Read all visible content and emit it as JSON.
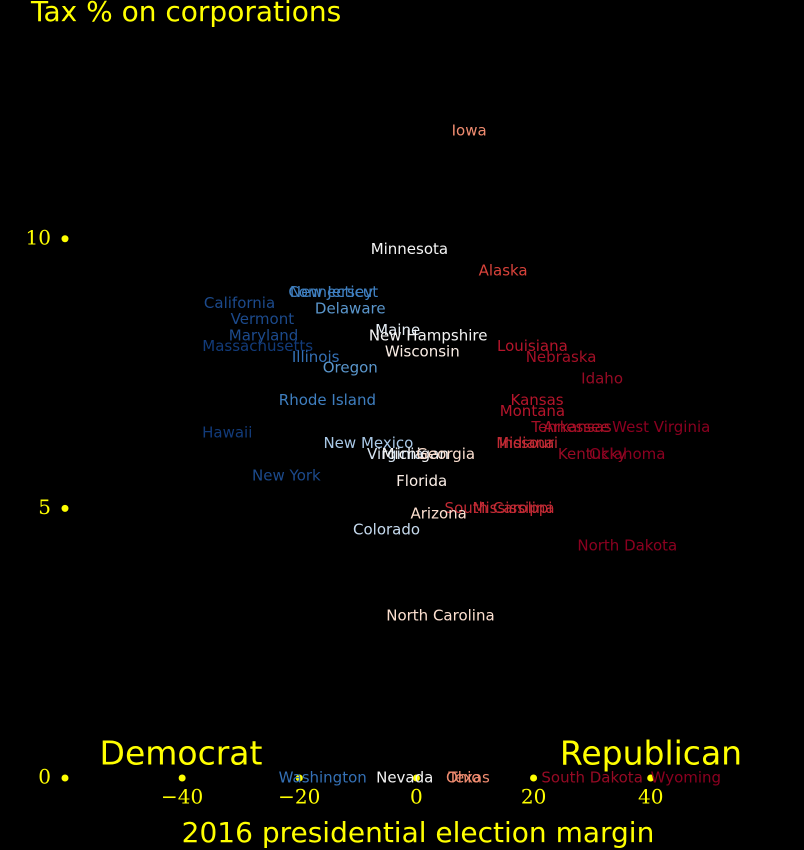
{
  "chart_data": {
    "type": "scatter",
    "title": "Tax % on corporations",
    "x_label": "2016 presidential election margin",
    "annotations": [
      "Democrat",
      "Republican"
    ],
    "xlim": [
      -60,
      66
    ],
    "ylim": [
      0,
      13
    ],
    "xticks": [
      {
        "value": -40,
        "label": "−40"
      },
      {
        "value": -20,
        "label": "−20"
      },
      0,
      20,
      40
    ],
    "yticks": [
      0,
      5,
      10
    ],
    "axis_color": "#ffff00",
    "points": [
      {
        "name": "Iowa",
        "x": 9,
        "y": 12,
        "color": "#f08c70"
      },
      {
        "name": "Minnesota",
        "x": -1.2,
        "y": 9.8,
        "color": "#f4f4f4"
      },
      {
        "name": "Alaska",
        "x": 14.8,
        "y": 9.4,
        "color": "#d8423a"
      },
      {
        "name": "Connecticut",
        "x": -14.2,
        "y": 9,
        "color": "#3f7fc0"
      },
      {
        "name": "New Jersey",
        "x": -14.5,
        "y": 9,
        "color": "#3f7fc0"
      },
      {
        "name": "California",
        "x": -30.2,
        "y": 8.8,
        "color": "#1c4a8c"
      },
      {
        "name": "Delaware",
        "x": -11.3,
        "y": 8.7,
        "color": "#5a96cc"
      },
      {
        "name": "Vermont",
        "x": -26.3,
        "y": 8.5,
        "color": "#1c4a8c"
      },
      {
        "name": "Maine",
        "x": -3.2,
        "y": 8.3,
        "color": "#e6eef6"
      },
      {
        "name": "New Hampshire",
        "x": 2,
        "y": 8.2,
        "color": "#f4f4f4"
      },
      {
        "name": "Maryland",
        "x": -26.1,
        "y": 8.2,
        "color": "#1c4a8c"
      },
      {
        "name": "Massachusetts",
        "x": -27.1,
        "y": 8,
        "color": "#123b7a"
      },
      {
        "name": "Louisiana",
        "x": 19.8,
        "y": 8,
        "color": "#b5152b"
      },
      {
        "name": "Wisconsin",
        "x": 1,
        "y": 7.9,
        "color": "#fbeee6"
      },
      {
        "name": "Illinois",
        "x": -17.2,
        "y": 7.8,
        "color": "#3470b5"
      },
      {
        "name": "Nebraska",
        "x": 24.7,
        "y": 7.8,
        "color": "#a50f26"
      },
      {
        "name": "Oregon",
        "x": -11.3,
        "y": 7.6,
        "color": "#5a96cc"
      },
      {
        "name": "Idaho",
        "x": 31.7,
        "y": 7.4,
        "color": "#960a24"
      },
      {
        "name": "Rhode Island",
        "x": -15.2,
        "y": 7,
        "color": "#3f7fc0"
      },
      {
        "name": "Kansas",
        "x": 20.6,
        "y": 7,
        "color": "#b5152b"
      },
      {
        "name": "Montana",
        "x": 19.8,
        "y": 6.8,
        "color": "#b5152b"
      },
      {
        "name": "Tennessee",
        "x": 26.3,
        "y": 6.5,
        "color": "#a50f26"
      },
      {
        "name": "Arkansas",
        "x": 27.5,
        "y": 6.5,
        "color": "#a50f26"
      },
      {
        "name": "West Virginia",
        "x": 41.8,
        "y": 6.5,
        "color": "#8b0020"
      },
      {
        "name": "Hawaii",
        "x": -32.3,
        "y": 6.4,
        "color": "#123b7a"
      },
      {
        "name": "New Mexico",
        "x": -8.2,
        "y": 6.2,
        "color": "#a9c8e6"
      },
      {
        "name": "Indiana",
        "x": 18.8,
        "y": 6.2,
        "color": "#c22a34"
      },
      {
        "name": "Missouri",
        "x": 18.9,
        "y": 6.2,
        "color": "#c22a34"
      },
      {
        "name": "Virginia",
        "x": -3.6,
        "y": 6,
        "color": "#d6e4f2"
      },
      {
        "name": "Michigan",
        "x": -0.2,
        "y": 6,
        "color": "#f4f4f4"
      },
      {
        "name": "Georgia",
        "x": 5,
        "y": 6,
        "color": "#fde0d0"
      },
      {
        "name": "Kentucky",
        "x": 30,
        "y": 6,
        "color": "#960a24"
      },
      {
        "name": "Oklahoma",
        "x": 36,
        "y": 6,
        "color": "#8b0020"
      },
      {
        "name": "New York",
        "x": -22.2,
        "y": 5.6,
        "color": "#1c4a8c"
      },
      {
        "name": "Florida",
        "x": 0.9,
        "y": 5.5,
        "color": "#fbeee6"
      },
      {
        "name": "South Carolina",
        "x": 14.2,
        "y": 5,
        "color": "#c22a34"
      },
      {
        "name": "Mississippi",
        "x": 16.4,
        "y": 5,
        "color": "#c22a34"
      },
      {
        "name": "Arizona",
        "x": 3.8,
        "y": 4.9,
        "color": "#fde0d0"
      },
      {
        "name": "Colorado",
        "x": -5.1,
        "y": 4.6,
        "color": "#c6daee"
      },
      {
        "name": "North Dakota",
        "x": 36,
        "y": 4.3,
        "color": "#8b0020"
      },
      {
        "name": "North Carolina",
        "x": 4.1,
        "y": 3,
        "color": "#fde0d0"
      },
      {
        "name": "Washington",
        "x": -16,
        "y": 0,
        "color": "#3470b5"
      },
      {
        "name": "Nevada",
        "x": -2,
        "y": 0,
        "color": "#f4f4f4"
      },
      {
        "name": "Ohio",
        "x": 8,
        "y": 0,
        "color": "#f08c70"
      },
      {
        "name": "Texas",
        "x": 9,
        "y": 0,
        "color": "#f08c70"
      },
      {
        "name": "South Dakota",
        "x": 30,
        "y": 0,
        "color": "#960a24"
      },
      {
        "name": "Wyoming",
        "x": 46,
        "y": 0,
        "color": "#8b0020"
      }
    ]
  }
}
